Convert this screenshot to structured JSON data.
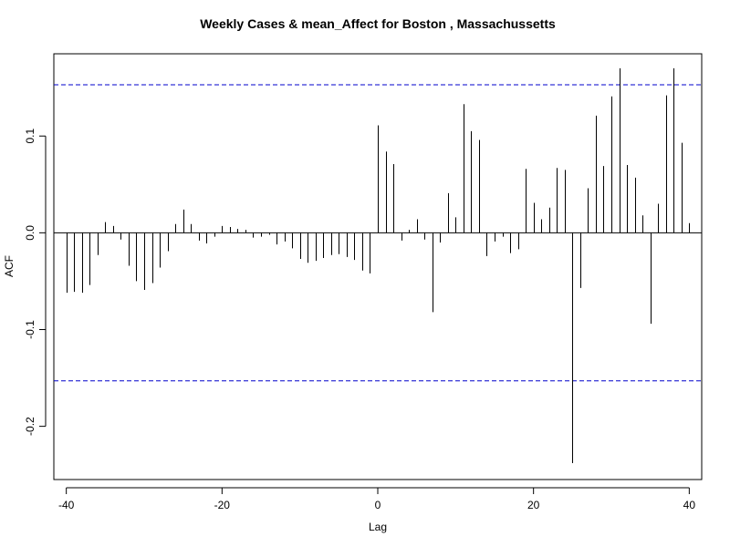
{
  "chart_data": {
    "type": "bar",
    "title": "Weekly Cases & mean_Affect for Boston , Massachussetts",
    "xlabel": "Lag",
    "ylabel": "ACF",
    "xlim": [
      -41.6,
      41.6
    ],
    "ylim": [
      -0.255,
      0.185
    ],
    "xticks": [
      -40,
      -20,
      0,
      20,
      40
    ],
    "xtick_labels": [
      "-40",
      "-20",
      "0",
      "20",
      "40"
    ],
    "yticks": [
      -0.2,
      -0.1,
      0.0,
      0.1
    ],
    "ytick_labels": [
      "-0.2",
      "-0.1",
      "0.0",
      "0.1"
    ],
    "confidence_limits": [
      0.153,
      -0.153
    ],
    "zero_line": true,
    "colors": {
      "bars": "#000000",
      "confidence": "#0000cc",
      "frame": "#000000"
    },
    "x": [
      -40,
      -39,
      -38,
      -37,
      -36,
      -35,
      -34,
      -33,
      -32,
      -31,
      -30,
      -29,
      -28,
      -27,
      -26,
      -25,
      -24,
      -23,
      -22,
      -21,
      -20,
      -19,
      -18,
      -17,
      -16,
      -15,
      -14,
      -13,
      -12,
      -11,
      -10,
      -9,
      -8,
      -7,
      -6,
      -5,
      -4,
      -3,
      -2,
      -1,
      0,
      1,
      2,
      3,
      4,
      5,
      6,
      7,
      8,
      9,
      10,
      11,
      12,
      13,
      14,
      15,
      16,
      17,
      18,
      19,
      20,
      21,
      22,
      23,
      24,
      25,
      26,
      27,
      28,
      29,
      30,
      31,
      32,
      33,
      34,
      35,
      36,
      37,
      38,
      39,
      40
    ],
    "values": [
      -0.062,
      -0.061,
      -0.062,
      -0.054,
      -0.023,
      0.011,
      0.007,
      -0.007,
      -0.034,
      -0.05,
      -0.059,
      -0.052,
      -0.036,
      -0.019,
      0.009,
      0.024,
      0.009,
      -0.008,
      -0.011,
      -0.004,
      0.007,
      0.006,
      0.004,
      0.003,
      -0.005,
      -0.004,
      -0.002,
      -0.012,
      -0.009,
      -0.016,
      -0.027,
      -0.031,
      -0.029,
      -0.026,
      -0.023,
      -0.022,
      -0.025,
      -0.028,
      -0.039,
      -0.042,
      0.111,
      0.084,
      0.071,
      -0.008,
      0.003,
      0.014,
      -0.007,
      -0.082,
      -0.01,
      0.041,
      0.016,
      0.133,
      0.105,
      0.096,
      -0.024,
      -0.009,
      -0.004,
      -0.021,
      -0.017,
      0.066,
      0.031,
      0.014,
      0.026,
      0.067,
      0.065,
      -0.238,
      -0.057,
      0.046,
      0.121,
      0.069,
      0.141,
      0.17,
      0.07,
      0.057,
      0.018,
      -0.094,
      0.03,
      0.142,
      0.17,
      0.093,
      0.01
    ]
  }
}
